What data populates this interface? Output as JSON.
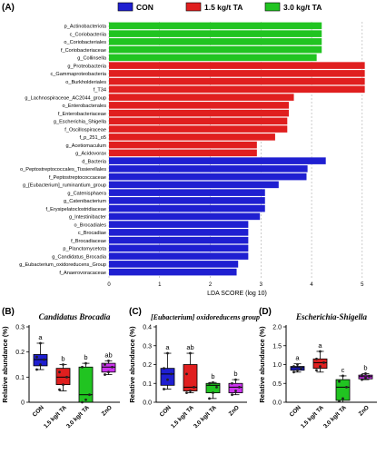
{
  "legend": [
    {
      "label": "CON",
      "color": "#1f1fd1"
    },
    {
      "label": "1.5 kg/t TA",
      "color": "#e01f1f"
    },
    {
      "label": "3.0 kg/t TA",
      "color": "#21c421"
    }
  ],
  "chart_data": [
    {
      "panel": "(A)",
      "type": "bar",
      "orientation": "horizontal",
      "title": "",
      "xlabel": "LDA SCORE (log 10)",
      "ylabel": "",
      "xlim": [
        0,
        5.2
      ],
      "xticks": [
        0,
        1,
        2,
        3,
        4,
        5
      ],
      "grid": true,
      "legend_position": "top",
      "categories": [
        "p_Actinobacteriota",
        "c_Coriobacteriia",
        "o_Coriobacteriales",
        "f_Coriobacteriaceae",
        "g_Collinsella",
        "g_Proteobacteria",
        "c_Gammaproteobacteria",
        "o_Burkholderiales",
        "f_T34",
        "g_Lachnospiraceae_AC2044_group",
        "o_Enterobacterales",
        "f_Enterobacteriaceae",
        "g_Escherichia_Shigella",
        "f_Oscillospiraceae",
        "f_p_251_o5",
        "g_Acetiomaculum",
        "g_Acidovorax",
        "d_Bacteria",
        "o_Peptostreptococcales_Tissierellales",
        "f_Peptostreptococcaceae",
        "g_[Eubacterium]_ruminantium_group",
        "g_Catenisphaera",
        "g_Catenibacterium",
        "f_Erysipelatoclostridiaceae",
        "g_Intestinibacter",
        "o_Brocadiales",
        "c_Brocadiae",
        "f_Brocadiaceae",
        "p_Planctomycetota",
        "g_Candidatus_Brocadia",
        "g_Eubacterium_oxidoreducens_Group",
        "f_Anaerovoracaceae"
      ],
      "values": [
        4.2,
        4.2,
        4.2,
        4.2,
        4.1,
        5.05,
        5.05,
        5.05,
        5.05,
        3.65,
        3.55,
        3.55,
        3.52,
        3.52,
        3.28,
        2.92,
        2.92,
        4.28,
        3.92,
        3.9,
        3.35,
        3.08,
        3.08,
        3.08,
        2.98,
        2.75,
        2.75,
        2.75,
        2.75,
        2.75,
        2.55,
        2.52
      ],
      "groups": [
        "3.0 kg/t TA",
        "3.0 kg/t TA",
        "3.0 kg/t TA",
        "3.0 kg/t TA",
        "3.0 kg/t TA",
        "1.5 kg/t TA",
        "1.5 kg/t TA",
        "1.5 kg/t TA",
        "1.5 kg/t TA",
        "1.5 kg/t TA",
        "1.5 kg/t TA",
        "1.5 kg/t TA",
        "1.5 kg/t TA",
        "1.5 kg/t TA",
        "1.5 kg/t TA",
        "1.5 kg/t TA",
        "1.5 kg/t TA",
        "CON",
        "CON",
        "CON",
        "CON",
        "CON",
        "CON",
        "CON",
        "CON",
        "CON",
        "CON",
        "CON",
        "CON",
        "CON",
        "CON",
        "CON"
      ]
    },
    {
      "panel": "(B)",
      "type": "box",
      "title": "Candidatus Brocadia",
      "ylabel": "Relative abundance (%)",
      "ylim": [
        0,
        0.3
      ],
      "yticks": [
        "0",
        "0.1",
        "0.2",
        "0.3"
      ],
      "ytick_values": [
        0,
        0.1,
        0.2,
        0.3
      ],
      "categories": [
        "CON",
        "1.5 kg/t TA",
        "3.0 kg/t TA",
        "ZnO"
      ],
      "colors": [
        "#1f1fd1",
        "#e01f1f",
        "#21c421",
        "#cc33ee"
      ],
      "boxes": [
        {
          "min": 0.13,
          "q1": 0.145,
          "median": 0.17,
          "q3": 0.19,
          "max": 0.235,
          "points": [
            0.13,
            0.15,
            0.17,
            0.18,
            0.235
          ],
          "letter": "a"
        },
        {
          "min": 0.045,
          "q1": 0.07,
          "median": 0.1,
          "q3": 0.135,
          "max": 0.15,
          "points": [
            0.05,
            0.07,
            0.1,
            0.12,
            0.15
          ],
          "letter": "b"
        },
        {
          "min": 0.0,
          "q1": 0.0,
          "median": 0.03,
          "q3": 0.14,
          "max": 0.155,
          "points": [
            0.0,
            0.01,
            0.03,
            0.14,
            0.155
          ],
          "letter": "b"
        },
        {
          "min": 0.11,
          "q1": 0.12,
          "median": 0.14,
          "q3": 0.155,
          "max": 0.165,
          "points": [
            0.11,
            0.12,
            0.14,
            0.15,
            0.165
          ],
          "letter": "ab"
        }
      ]
    },
    {
      "panel": "(C)",
      "type": "box",
      "title": "[Eubacterium] oxidoreducens group",
      "ylabel": "Relative abundance (%)",
      "ylim": [
        0,
        0.4
      ],
      "yticks": [
        "0.0",
        "0.1",
        "0.2",
        "0.3",
        "0.4"
      ],
      "ytick_values": [
        0,
        0.1,
        0.2,
        0.3,
        0.4
      ],
      "categories": [
        "CON",
        "1.5 kg/t TA",
        "3.0 kg/t TA",
        "ZnO"
      ],
      "colors": [
        "#1f1fd1",
        "#e01f1f",
        "#21c421",
        "#cc33ee"
      ],
      "boxes": [
        {
          "min": 0.07,
          "q1": 0.09,
          "median": 0.15,
          "q3": 0.18,
          "max": 0.26,
          "points": [
            0.07,
            0.12,
            0.15,
            0.18,
            0.26
          ],
          "letter": "a"
        },
        {
          "min": 0.05,
          "q1": 0.06,
          "median": 0.08,
          "q3": 0.2,
          "max": 0.26,
          "points": [
            0.05,
            0.06,
            0.08,
            0.15,
            0.26
          ],
          "letter": "ab"
        },
        {
          "min": 0.02,
          "q1": 0.05,
          "median": 0.09,
          "q3": 0.1,
          "max": 0.105,
          "points": [
            0.02,
            0.05,
            0.08,
            0.1,
            0.105
          ],
          "letter": "b"
        },
        {
          "min": 0.04,
          "q1": 0.05,
          "median": 0.08,
          "q3": 0.1,
          "max": 0.12,
          "points": [
            0.04,
            0.06,
            0.08,
            0.1,
            0.12
          ],
          "letter": "b"
        }
      ]
    },
    {
      "panel": "(D)",
      "type": "box",
      "title": "Escherichia-Shigella",
      "ylabel": "Relative abundance (%)",
      "ylim": [
        0,
        2.0
      ],
      "yticks": [
        "0.0",
        "0.5",
        "1.0",
        "1.5",
        "2.0"
      ],
      "ytick_values": [
        0,
        0.5,
        1.0,
        1.5,
        2.0
      ],
      "categories": [
        "CON",
        "1.5 kg/t TA",
        "3.0 kg/t TA",
        "ZnO"
      ],
      "colors": [
        "#1f1fd1",
        "#e01f1f",
        "#21c421",
        "#cc33ee"
      ],
      "boxes": [
        {
          "min": 0.8,
          "q1": 0.85,
          "median": 0.92,
          "q3": 0.95,
          "max": 1.02,
          "points": [
            0.8,
            0.85,
            0.9,
            0.95,
            1.0
          ],
          "letter": "a"
        },
        {
          "min": 0.8,
          "q1": 0.9,
          "median": 1.05,
          "q3": 1.15,
          "max": 1.35,
          "points": [
            0.85,
            0.95,
            1.05,
            1.15,
            1.35
          ],
          "letter": "a"
        },
        {
          "min": 0.0,
          "q1": 0.05,
          "median": 0.4,
          "q3": 0.6,
          "max": 0.7,
          "points": [
            0.02,
            0.1,
            0.4,
            0.55,
            0.7
          ],
          "letter": "c"
        },
        {
          "min": 0.6,
          "q1": 0.62,
          "median": 0.68,
          "q3": 0.72,
          "max": 0.76,
          "points": [
            0.6,
            0.65,
            0.68,
            0.72,
            0.76
          ],
          "letter": "b"
        }
      ]
    }
  ]
}
